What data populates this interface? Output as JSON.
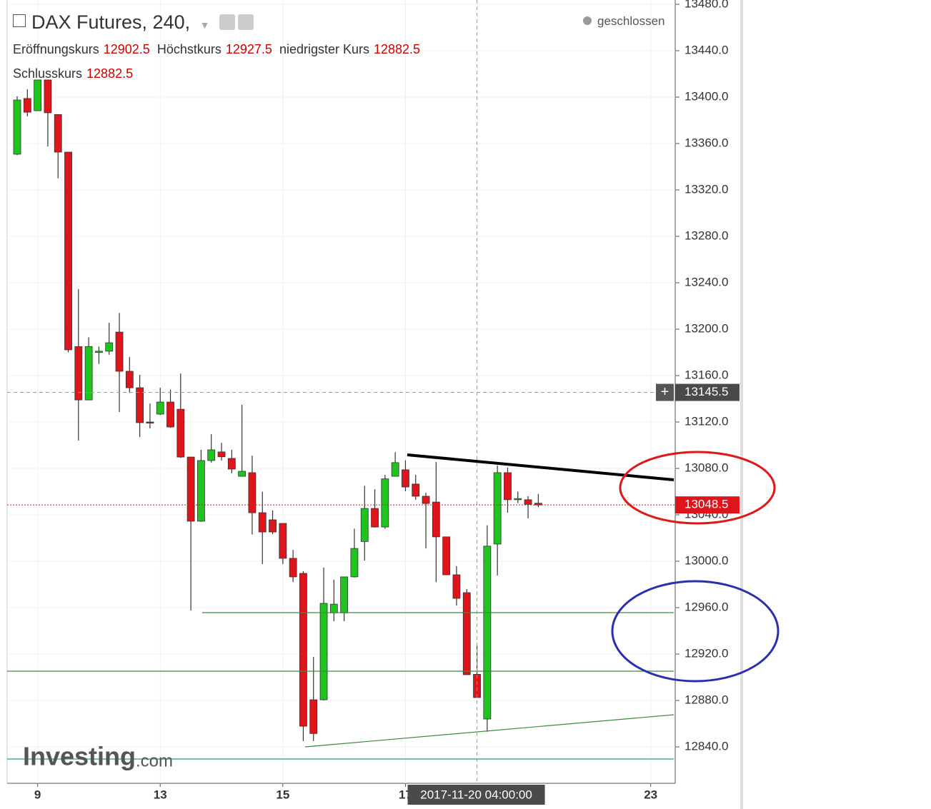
{
  "chart_data": {
    "type": "candlestick",
    "title": "DAX Futures, 240,",
    "status": "geschlossen",
    "ohlc_labels": [
      "Eröffnungskurs",
      "Höchstkurs",
      "niedrigster Kurs",
      "Schlusskurs"
    ],
    "open": [
      13350.8,
      13398.8,
      13388.3,
      13414.8,
      13385,
      13352.6,
      13185,
      13139,
      13180,
      13181,
      13197.5,
      13163.7,
      13149.5,
      13120,
      13126.8,
      13137.2,
      13131,
      13089.8,
      13034.5,
      13086.8,
      13094.2,
      13088.6,
      13073.2,
      13076.3,
      13041.8,
      13035.7,
      13032.6,
      13002.5,
      12989.5,
      12880.6,
      12880.6,
      12955.5,
      12955.5,
      12986.5,
      13017,
      13045.5,
      13029.5,
      13073.2,
      13078.8,
      13066.5,
      13056,
      13051,
      13021,
      12988.3,
      12972.9,
      12902.5,
      12864,
      13014.8,
      13076.3,
      13053,
      13053,
      13050
    ],
    "high": [
      13400.6,
      13406.8,
      13414.8,
      13414.8,
      13385,
      13352.6,
      13234.5,
      13193,
      13185,
      13205.5,
      13214,
      13176,
      13160.6,
      13136,
      13149.5,
      13148,
      13161.8,
      13090,
      13096,
      13109.5,
      13102,
      13096,
      13134.8,
      13091,
      13060,
      13043.7,
      13032.6,
      13009.8,
      12991.4,
      12917.5,
      12994.5,
      12984,
      12986.5,
      13028,
      13065,
      13062,
      13074.5,
      13094,
      13087,
      13074.5,
      13059,
      13085.5,
      13021,
      12995.7,
      12976,
      12927.5,
      13031,
      13082.5,
      13080.6,
      13060,
      13056,
      13058
    ],
    "low": [
      13350,
      13383.4,
      13388,
      13357.5,
      13330,
      13180,
      13104,
      13139,
      13170,
      13178,
      13128.6,
      13145,
      13107,
      13114.5,
      13126,
      13115,
      13089,
      12957.5,
      13034,
      13085,
      13086.8,
      13075.7,
      13073,
      13023,
      12997.5,
      13023.4,
      12997.5,
      12982,
      12845,
      12845,
      12880,
      12948.3,
      12948.3,
      12986,
      13000.6,
      13029,
      13028,
      13073,
      13060.3,
      13053,
      13011,
      12982,
      12988,
      12961.8,
      12902,
      12882.5,
      12853,
      12987.7,
      13041.8,
      13050,
      13037,
      13046.7
    ],
    "close": [
      13397.5,
      13387,
      13414.8,
      13386.5,
      13352.6,
      13182.2,
      13139,
      13185,
      13181,
      13188.3,
      13163.7,
      13149.5,
      13119.4,
      13119,
      13137.2,
      13115.7,
      13089.8,
      13034.5,
      13086.8,
      13096,
      13090,
      13079.4,
      13077.5,
      13041.8,
      13025.2,
      13025.2,
      13002.5,
      12986.5,
      12857.8,
      12851.5,
      12963.7,
      12963,
      12986.5,
      13011,
      13045.5,
      13029.5,
      13071,
      13085,
      13064,
      13056,
      13049.8,
      13021,
      12988.3,
      12968,
      12902.2,
      12882.5,
      13013,
      13076.3,
      13053,
      13054,
      13049,
      13048.5
    ],
    "up_color": "#1fc41f",
    "down_color": "#e0141b",
    "ylim": [
      12808.6,
      13483.7
    ],
    "yticks": [
      {
        "value": 12840,
        "label": "12840.0"
      },
      {
        "value": 12880,
        "label": "12880.0"
      },
      {
        "value": 12920,
        "label": "12920.0"
      },
      {
        "value": 12960,
        "label": "12960.0"
      },
      {
        "value": 13000,
        "label": "13000.0"
      },
      {
        "value": 13040,
        "label": "13040.0"
      },
      {
        "value": 13080,
        "label": "13080.0"
      },
      {
        "value": 13120,
        "label": "13120.0"
      },
      {
        "value": 13160,
        "label": "13160.0"
      },
      {
        "value": 13200,
        "label": "13200.0"
      },
      {
        "value": 13240,
        "label": "13240.0"
      },
      {
        "value": 13280,
        "label": "13280.0"
      },
      {
        "value": 13320,
        "label": "13320.0"
      },
      {
        "value": 13360,
        "label": "13360.0"
      },
      {
        "value": 13400,
        "label": "13400.0"
      },
      {
        "value": 13440,
        "label": "13440.0"
      },
      {
        "value": 13480,
        "label": "13480.0"
      }
    ],
    "xlim": [
      -0.98,
      64.4
    ],
    "xticks": [
      {
        "value": 2,
        "label": "9"
      },
      {
        "value": 14,
        "label": "13"
      },
      {
        "value": 26,
        "label": "15"
      },
      {
        "value": 38,
        "label": "17"
      },
      {
        "value": 62,
        "label": "23"
      }
    ],
    "grid": true,
    "crosshair": {
      "x": 45,
      "price": 13145.5,
      "label": "2017-11-20 04:00:00"
    },
    "brand": [
      "Investing",
      ".com"
    ]
  }
}
